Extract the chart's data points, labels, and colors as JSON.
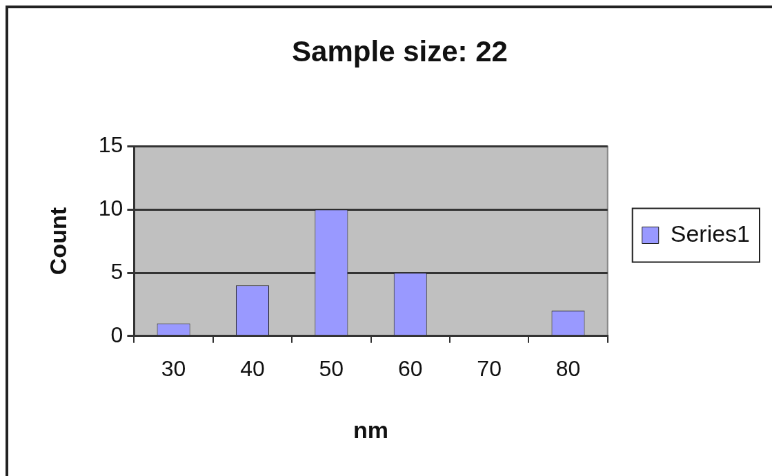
{
  "chart_data": {
    "type": "bar",
    "title": "Sample size: 22",
    "xlabel": "nm",
    "ylabel": "Count",
    "categories": [
      "30",
      "40",
      "50",
      "60",
      "70",
      "80"
    ],
    "series": [
      {
        "name": "Series1",
        "color": "#9999ff",
        "values": [
          1,
          4,
          10,
          5,
          0,
          2
        ]
      }
    ],
    "ylim": [
      0,
      15
    ],
    "yticks": [
      0,
      5,
      10,
      15
    ],
    "grid": "y",
    "legend": "right"
  }
}
